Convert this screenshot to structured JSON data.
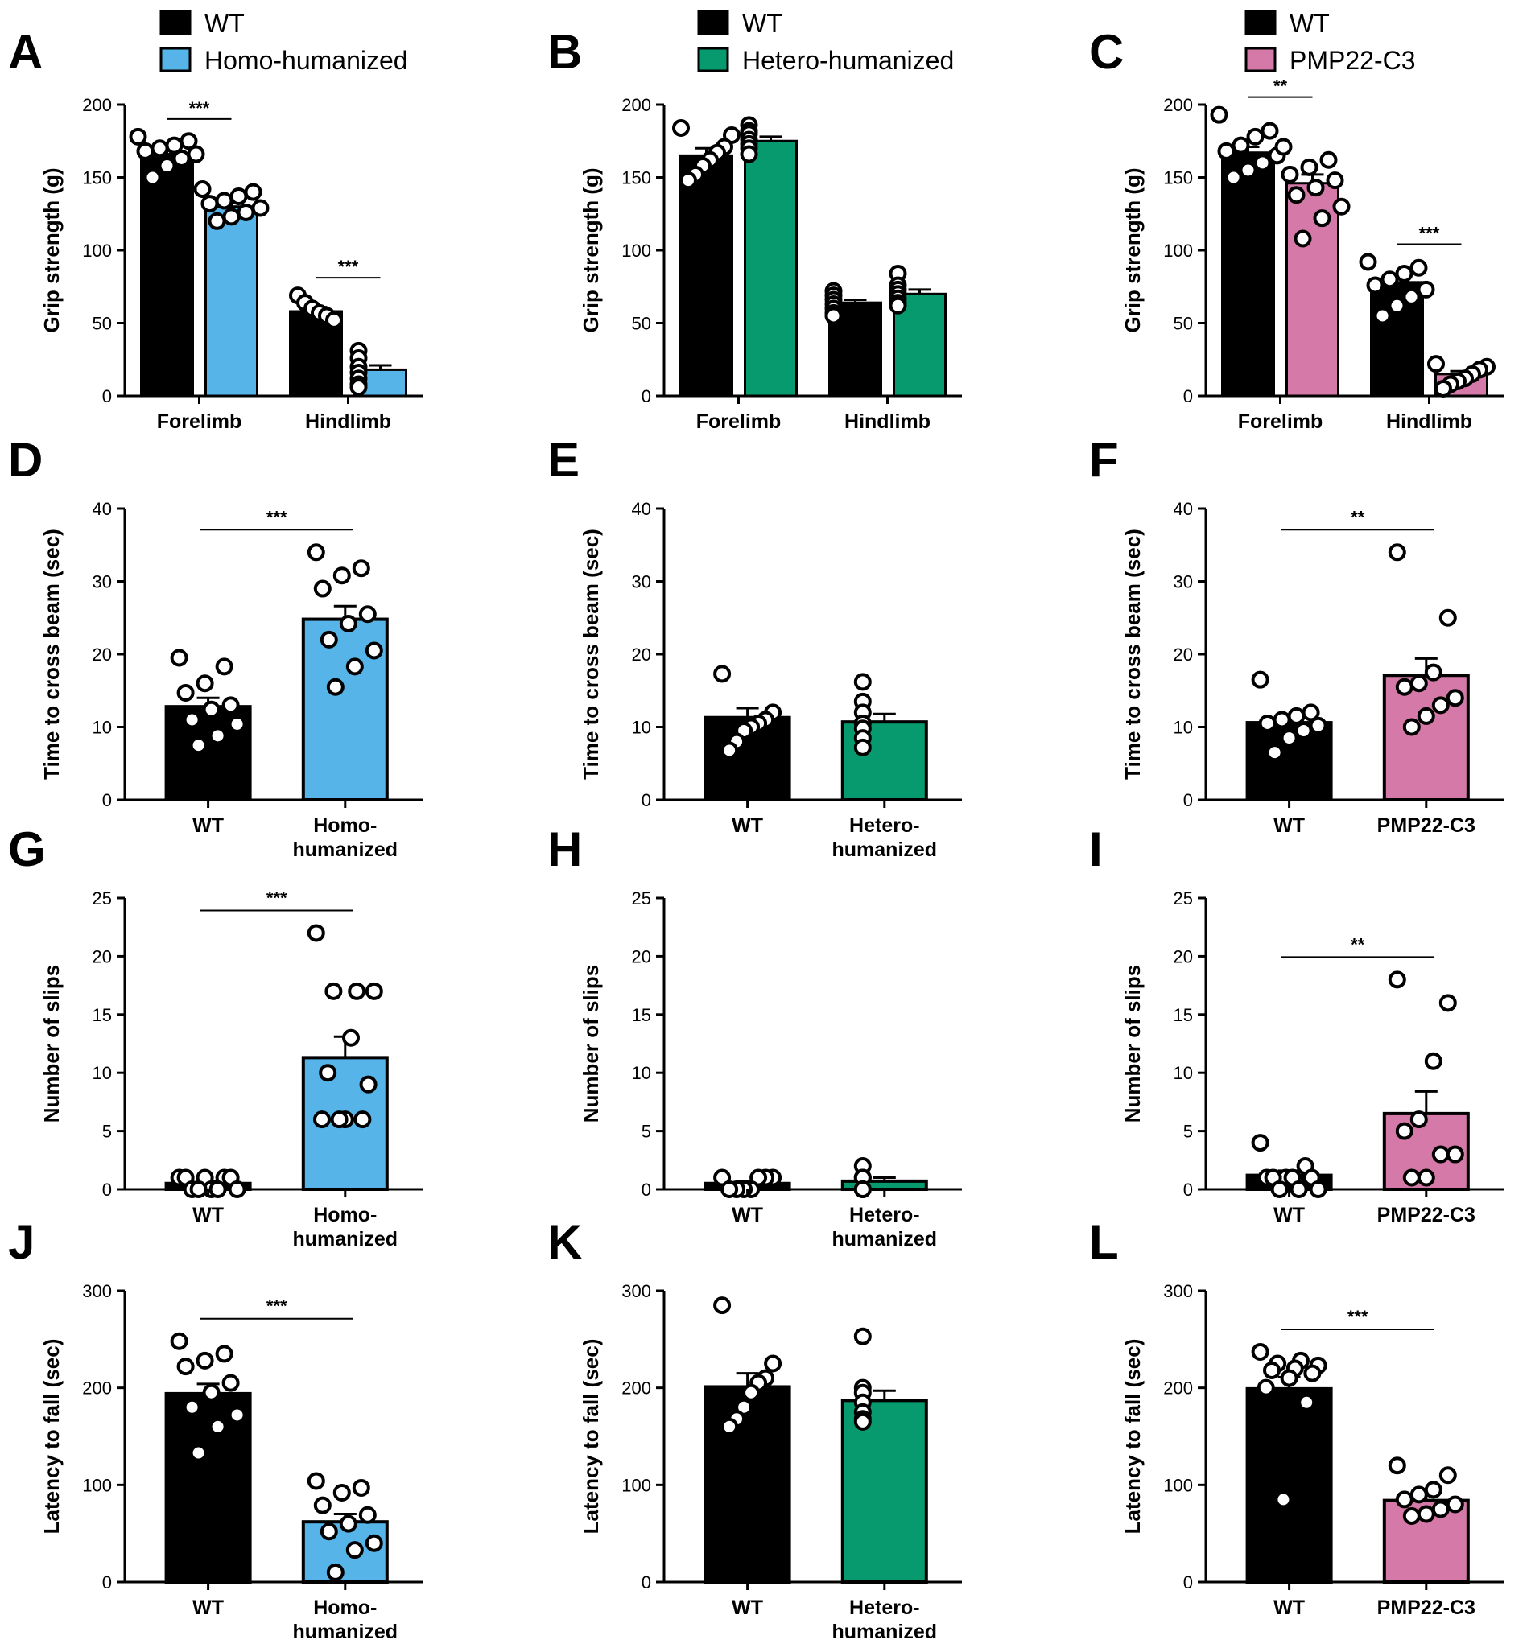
{
  "figure": {
    "colors": {
      "wt": "#000000",
      "homo": "#56b4e9",
      "hetero": "#079a6e",
      "pmp22": "#d57aa8"
    },
    "legends": [
      {
        "panel": "A",
        "items": [
          {
            "label": "WT",
            "color": "#000000"
          },
          {
            "label": "Homo-humanized",
            "color": "#56b4e9"
          }
        ]
      },
      {
        "panel": "B",
        "items": [
          {
            "label": "WT",
            "color": "#000000"
          },
          {
            "label": "Hetero-humanized",
            "color": "#079a6e"
          }
        ]
      },
      {
        "panel": "C",
        "items": [
          {
            "label": "WT",
            "color": "#000000"
          },
          {
            "label": "PMP22-C3",
            "color": "#d57aa8"
          }
        ]
      }
    ]
  },
  "chart_data": [
    {
      "panel": "A",
      "type": "bar",
      "ylabel": "Grip strength (g)",
      "ylim": [
        0,
        200
      ],
      "yticks": [
        0,
        50,
        100,
        150,
        200
      ],
      "categories": [
        "Forelimb",
        "Hindlimb"
      ],
      "series": [
        {
          "name": "WT",
          "color": "#000000",
          "values": [
            166,
            58
          ],
          "sem": [
            4,
            3
          ],
          "points": [
            [
              178,
              175,
              172,
              170,
              168,
              166,
              163,
              158,
              150
            ],
            [
              69,
              64,
              60,
              57,
              55,
              52
            ]
          ]
        },
        {
          "name": "Homo-humanized",
          "color": "#56b4e9",
          "values": [
            130,
            18
          ],
          "sem": [
            3,
            3
          ],
          "points": [
            [
              142,
              140,
              137,
              134,
              132,
              129,
              126,
              123,
              120
            ],
            [
              31,
              26,
              20,
              16,
              12,
              8,
              6
            ]
          ]
        }
      ],
      "significance": [
        {
          "group": 0,
          "label": "***"
        },
        {
          "group": 1,
          "label": "***"
        }
      ]
    },
    {
      "panel": "B",
      "type": "bar",
      "ylabel": "Grip strength (g)",
      "ylim": [
        0,
        200
      ],
      "yticks": [
        0,
        50,
        100,
        150,
        200
      ],
      "categories": [
        "Forelimb",
        "Hindlimb"
      ],
      "series": [
        {
          "name": "WT",
          "color": "#000000",
          "values": [
            165,
            64
          ],
          "sem": [
            5,
            2
          ],
          "points": [
            [
              184,
              179,
              171,
              167,
              162,
              158,
              152,
              148
            ],
            [
              72,
              69,
              66,
              63,
              60,
              57,
              55
            ]
          ]
        },
        {
          "name": "Hetero-humanized",
          "color": "#079a6e",
          "values": [
            175,
            70
          ],
          "sem": [
            3,
            3
          ],
          "points": [
            [
              186,
              182,
              180,
              176,
              173,
              170,
              166
            ],
            [
              84,
              76,
              73,
              70,
              67,
              64,
              62
            ]
          ]
        }
      ],
      "significance": []
    },
    {
      "panel": "C",
      "type": "bar",
      "ylabel": "Grip strength (g)",
      "ylim": [
        0,
        200
      ],
      "yticks": [
        0,
        50,
        100,
        150,
        200
      ],
      "categories": [
        "Forelimb",
        "Hindlimb"
      ],
      "series": [
        {
          "name": "WT",
          "color": "#000000",
          "values": [
            167,
            78
          ],
          "sem": [
            4,
            4
          ],
          "points": [
            [
              193,
              182,
              178,
              172,
              168,
              165,
              160,
              155,
              150
            ],
            [
              92,
              88,
              84,
              80,
              76,
              73,
              68,
              62,
              55
            ]
          ]
        },
        {
          "name": "PMP22-C3",
          "color": "#d57aa8",
          "values": [
            146,
            15
          ],
          "sem": [
            6,
            2
          ],
          "points": [
            [
              171,
              162,
              157,
              152,
              148,
              143,
              138,
              130,
              122,
              108
            ],
            [
              22,
              20,
              18,
              15,
              12,
              10,
              8,
              5
            ]
          ]
        }
      ],
      "significance": [
        {
          "group": 0,
          "label": "**"
        },
        {
          "group": 1,
          "label": "***"
        }
      ]
    },
    {
      "panel": "D",
      "type": "bar",
      "ylabel": "Time to cross beam (sec)",
      "ylim": [
        0,
        40
      ],
      "yticks": [
        0,
        10,
        20,
        30,
        40
      ],
      "categories": [
        "WT",
        "Homo-humanized"
      ],
      "category_labels": [
        [
          "WT"
        ],
        [
          "Homo-",
          "humanized"
        ]
      ],
      "colors": [
        "#000000",
        "#56b4e9"
      ],
      "values": [
        12.8,
        24.8
      ],
      "sem": [
        1.2,
        1.8
      ],
      "points": [
        [
          19.5,
          18.3,
          16.0,
          14.7,
          13.0,
          12.4,
          11.0,
          10.4,
          8.8,
          7.5
        ],
        [
          34.0,
          31.8,
          30.8,
          29.0,
          25.5,
          24.2,
          22.0,
          20.5,
          18.3,
          15.5
        ]
      ],
      "significance": [
        {
          "label": "***"
        }
      ]
    },
    {
      "panel": "E",
      "type": "bar",
      "ylabel": "Time to cross beam (sec)",
      "ylim": [
        0,
        40
      ],
      "yticks": [
        0,
        10,
        20,
        30,
        40
      ],
      "categories": [
        "WT",
        "Hetero-humanized"
      ],
      "category_labels": [
        [
          "WT"
        ],
        [
          "Hetero-",
          "humanized"
        ]
      ],
      "colors": [
        "#000000",
        "#079a6e"
      ],
      "values": [
        11.3,
        10.7
      ],
      "sem": [
        1.3,
        1.1
      ],
      "points": [
        [
          17.3,
          12.0,
          11.0,
          10.5,
          10.0,
          9.5,
          8.0,
          6.8
        ],
        [
          16.2,
          13.5,
          12.0,
          10.5,
          9.8,
          8.5,
          7.2
        ]
      ],
      "significance": []
    },
    {
      "panel": "F",
      "type": "bar",
      "ylabel": "Time to cross beam (sec)",
      "ylim": [
        0,
        40
      ],
      "yticks": [
        0,
        10,
        20,
        30,
        40
      ],
      "categories": [
        "WT",
        "PMP22-C3"
      ],
      "category_labels": [
        [
          "WT"
        ],
        [
          "PMP22-C3"
        ]
      ],
      "colors": [
        "#000000",
        "#d57aa8"
      ],
      "values": [
        10.6,
        17.1
      ],
      "sem": [
        1.1,
        2.3
      ],
      "points": [
        [
          16.5,
          12.0,
          11.5,
          11.0,
          10.5,
          10.2,
          9.5,
          8.5,
          6.5
        ],
        [
          34.0,
          25.0,
          17.5,
          16.0,
          15.5,
          14.0,
          13.0,
          11.5,
          10.0
        ]
      ],
      "significance": [
        {
          "label": "**"
        }
      ]
    },
    {
      "panel": "G",
      "type": "bar",
      "ylabel": "Number of slips",
      "ylim": [
        0,
        25
      ],
      "yticks": [
        0,
        5,
        10,
        15,
        20,
        25
      ],
      "categories": [
        "WT",
        "Homo-humanized"
      ],
      "category_labels": [
        [
          "WT"
        ],
        [
          "Homo-",
          "humanized"
        ]
      ],
      "colors": [
        "#000000",
        "#56b4e9"
      ],
      "values": [
        0.5,
        11.3
      ],
      "sem": [
        0.2,
        1.8
      ],
      "points": [
        [
          1,
          1,
          1,
          1,
          1,
          0,
          0,
          0,
          0,
          0
        ],
        [
          22,
          17,
          17,
          17,
          13,
          10,
          9,
          6,
          6,
          6,
          6
        ]
      ],
      "significance": [
        {
          "label": "***"
        }
      ]
    },
    {
      "panel": "H",
      "type": "bar",
      "ylabel": "Number of slips",
      "ylim": [
        0,
        25
      ],
      "yticks": [
        0,
        5,
        10,
        15,
        20,
        25
      ],
      "categories": [
        "WT",
        "Hetero-humanized"
      ],
      "category_labels": [
        [
          "WT"
        ],
        [
          "Hetero-",
          "humanized"
        ]
      ],
      "colors": [
        "#000000",
        "#079a6e"
      ],
      "values": [
        0.5,
        0.7
      ],
      "sem": [
        0.2,
        0.3
      ],
      "points": [
        [
          1,
          1,
          1,
          1,
          0,
          0,
          0,
          0
        ],
        [
          2,
          1,
          1,
          1,
          0,
          0,
          0
        ]
      ],
      "significance": []
    },
    {
      "panel": "I",
      "type": "bar",
      "ylabel": "Number of slips",
      "ylim": [
        0,
        25
      ],
      "yticks": [
        0,
        5,
        10,
        15,
        20,
        25
      ],
      "categories": [
        "WT",
        "PMP22-C3"
      ],
      "category_labels": [
        [
          "WT"
        ],
        [
          "PMP22-C3"
        ]
      ],
      "colors": [
        "#000000",
        "#d57aa8"
      ],
      "values": [
        1.2,
        6.5
      ],
      "sem": [
        0.4,
        1.9
      ],
      "points": [
        [
          4,
          2,
          1,
          1,
          1,
          1,
          1,
          0,
          0,
          0
        ],
        [
          18,
          16,
          11,
          6,
          5,
          3,
          3,
          1,
          1
        ]
      ],
      "significance": [
        {
          "label": "**"
        }
      ]
    },
    {
      "panel": "J",
      "type": "bar",
      "ylabel": "Latency to fall (sec)",
      "ylim": [
        0,
        300
      ],
      "yticks": [
        0,
        100,
        200,
        300
      ],
      "categories": [
        "WT",
        "Homo-humanized"
      ],
      "category_labels": [
        [
          "WT"
        ],
        [
          "Homo-",
          "humanized"
        ]
      ],
      "colors": [
        "#000000",
        "#56b4e9"
      ],
      "values": [
        194,
        62
      ],
      "sem": [
        10,
        8
      ],
      "points": [
        [
          248,
          235,
          228,
          222,
          205,
          195,
          180,
          172,
          160,
          133
        ],
        [
          104,
          97,
          92,
          79,
          69,
          60,
          52,
          40,
          33,
          10
        ]
      ],
      "significance": [
        {
          "label": "***"
        }
      ]
    },
    {
      "panel": "K",
      "type": "bar",
      "ylabel": "Latency to fall (sec)",
      "ylim": [
        0,
        300
      ],
      "yticks": [
        0,
        100,
        200,
        300
      ],
      "categories": [
        "WT",
        "Hetero-humanized"
      ],
      "category_labels": [
        [
          "WT"
        ],
        [
          "Hetero-",
          "humanized"
        ]
      ],
      "colors": [
        "#000000",
        "#079a6e"
      ],
      "values": [
        201,
        187
      ],
      "sem": [
        14,
        10
      ],
      "points": [
        [
          285,
          225,
          210,
          205,
          195,
          180,
          168,
          160
        ],
        [
          253,
          200,
          195,
          185,
          175,
          168,
          165
        ]
      ],
      "significance": []
    },
    {
      "panel": "L",
      "type": "bar",
      "ylabel": "Latency to fall (sec)",
      "ylim": [
        0,
        300
      ],
      "yticks": [
        0,
        100,
        200,
        300
      ],
      "categories": [
        "WT",
        "PMP22-C3"
      ],
      "category_labels": [
        [
          "WT"
        ],
        [
          "PMP22-C3"
        ]
      ],
      "colors": [
        "#000000",
        "#d57aa8"
      ],
      "values": [
        199,
        84
      ],
      "sem": [
        12,
        5
      ],
      "points": [
        [
          237,
          228,
          225,
          223,
          220,
          218,
          215,
          210,
          200,
          185,
          85
        ],
        [
          120,
          110,
          95,
          90,
          85,
          80,
          75,
          70,
          68
        ]
      ],
      "significance": [
        {
          "label": "***"
        }
      ]
    }
  ]
}
